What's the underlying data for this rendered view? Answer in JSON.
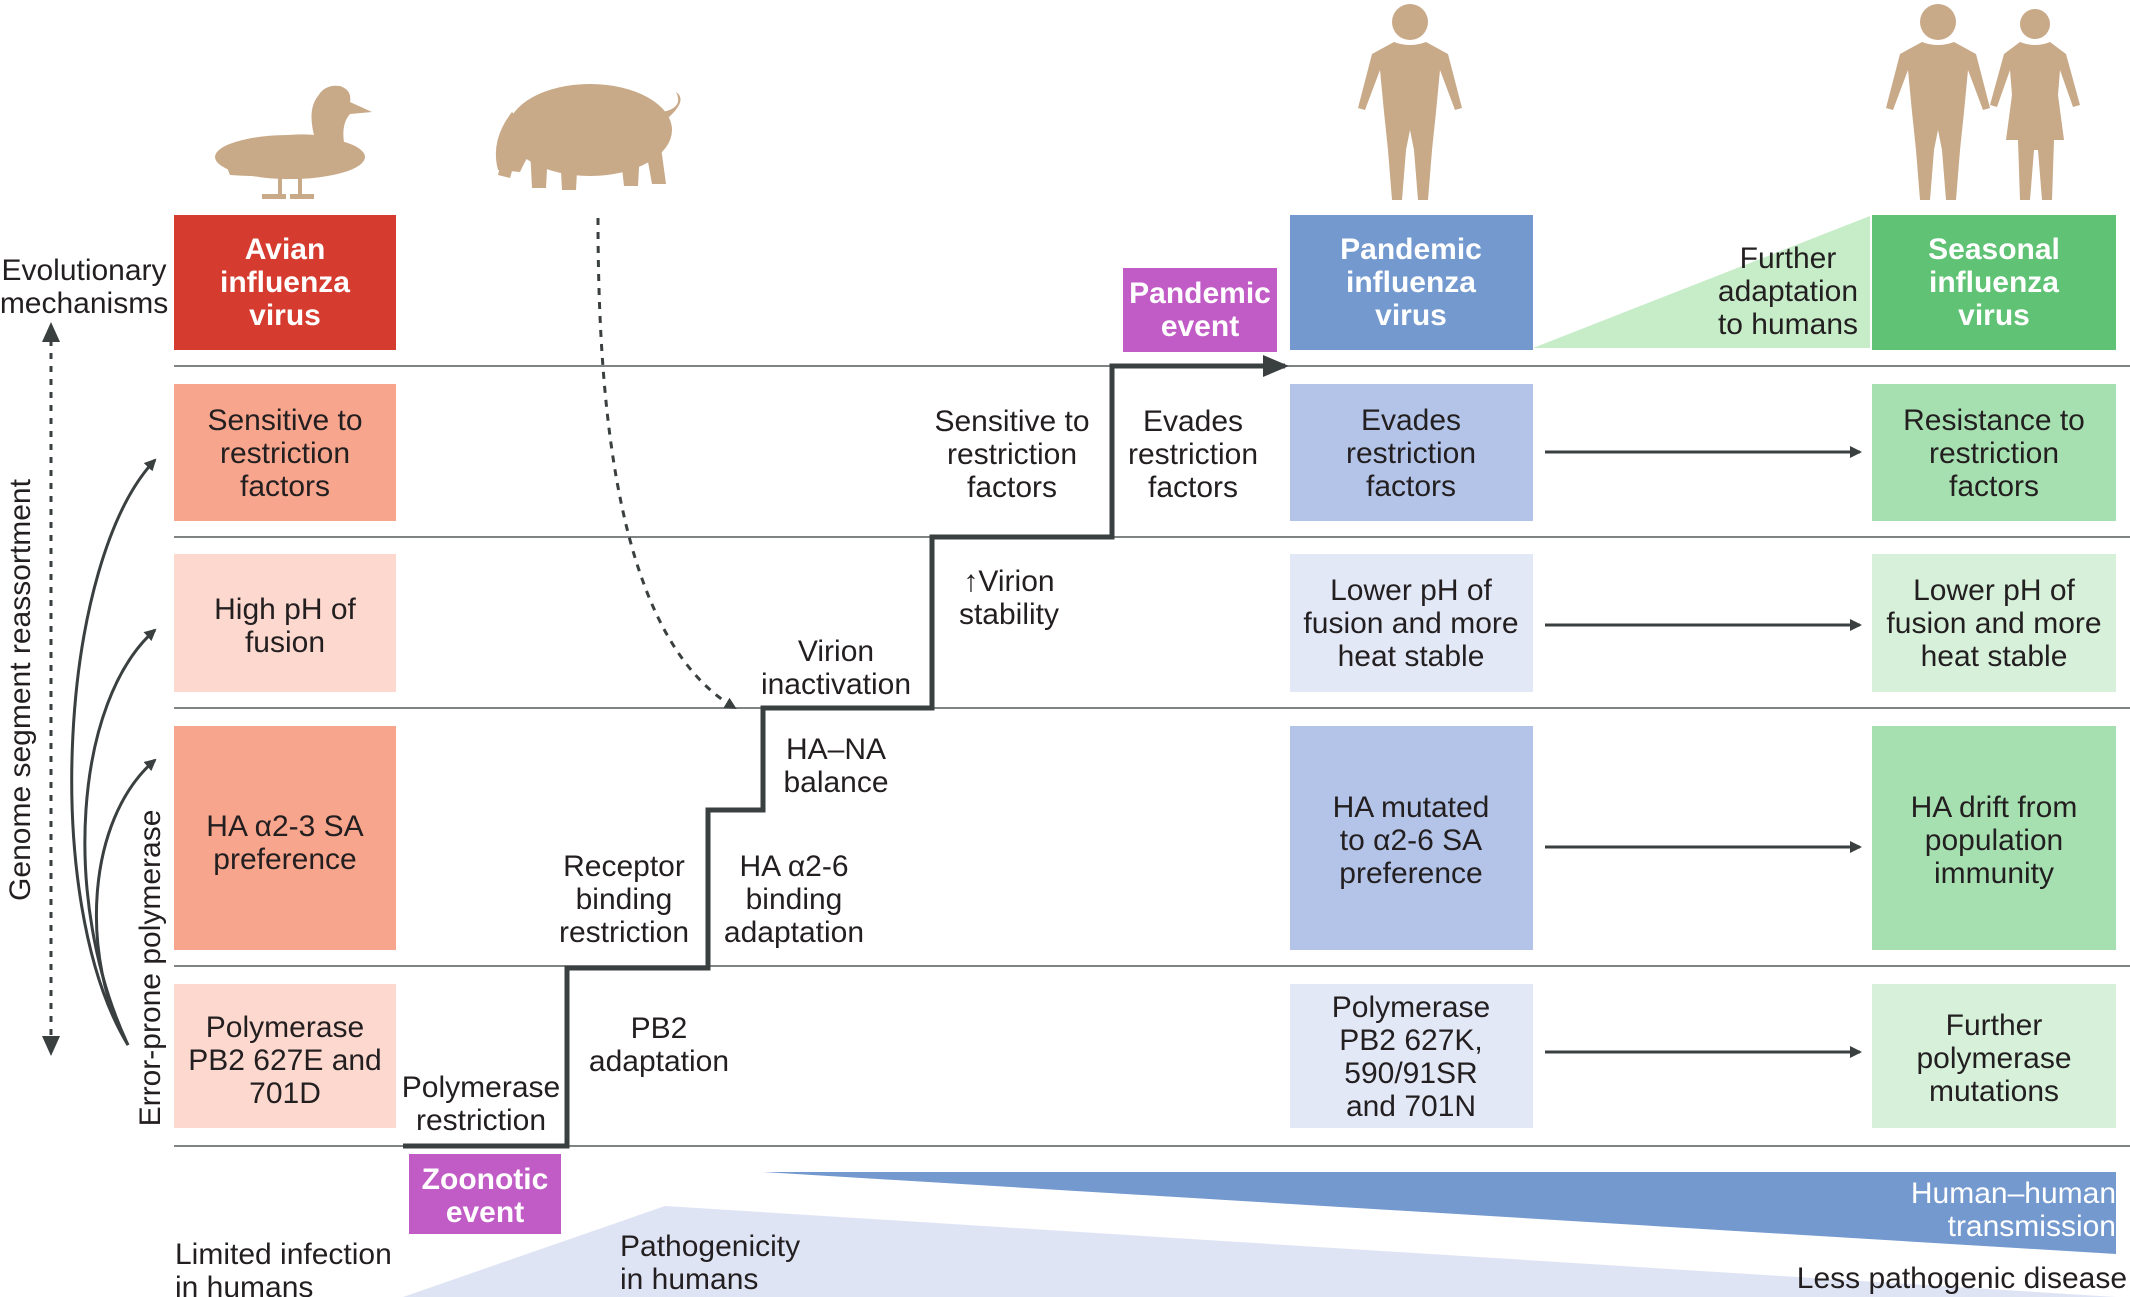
{
  "colors": {
    "avian_header": "#d63b2f",
    "avian_dark": "#f7a58d",
    "avian_light": "#fcd8cf",
    "pandemic_header": "#7399cf",
    "pandemic_mid": "#b3c4e8",
    "pandemic_light": "#e3e8f6",
    "seasonal_header": "#5fc274",
    "seasonal_mid": "#a6e0b0",
    "seasonal_light": "#d6f0da",
    "event": "#c15bc6",
    "step_line": "#3a3f40",
    "host_silhouette": "#c8a988",
    "transmission_wedge": "#7399cf",
    "pathogenicity_wedge": "#dfe4f5",
    "adaptation_wedge": "#c6ecc8"
  },
  "icons": {
    "duck": "duck-icon",
    "pig": "pig-icon",
    "human": "human-icon",
    "human_pair": "human-pair-icon"
  },
  "left_axis": {
    "evolutionary_mechanisms": [
      "Evolutionary",
      "mechanisms"
    ],
    "reassortment": "Genome segment reassortment",
    "polymerase": "Error-prone polymerase"
  },
  "headers": {
    "avian": [
      "Avian",
      "influenza",
      "virus"
    ],
    "pandemic": [
      "Pandemic",
      "influenza",
      "virus"
    ],
    "seasonal": [
      "Seasonal",
      "influenza",
      "virus"
    ],
    "pandemic_event": [
      "Pandemic",
      "event"
    ],
    "further_adaptation": [
      "Further",
      "adaptation",
      "to humans"
    ]
  },
  "avian_boxes": {
    "restriction": [
      "Sensitive to",
      "restriction",
      "factors"
    ],
    "fusion": [
      "High pH of",
      "fusion"
    ],
    "receptor": [
      "HA α2-3 SA",
      "preference"
    ],
    "polymerase": [
      "Polymerase",
      "PB2 627E and",
      "701D"
    ]
  },
  "pandemic_boxes": {
    "restriction": [
      "Evades",
      "restriction",
      "factors"
    ],
    "fusion": [
      "Lower pH of",
      "fusion and more",
      "heat stable"
    ],
    "receptor": [
      "HA mutated",
      "to α2-6 SA",
      "preference"
    ],
    "polymerase": [
      "Polymerase",
      "PB2 627K,",
      "590/91SR",
      "and 701N"
    ]
  },
  "seasonal_boxes": {
    "restriction": [
      "Resistance to",
      "restriction",
      "factors"
    ],
    "fusion": [
      "Lower pH of",
      "fusion and more",
      "heat stable"
    ],
    "receptor": [
      "HA drift from",
      "population",
      "immunity"
    ],
    "polymerase": [
      "Further",
      "polymerase",
      "mutations"
    ]
  },
  "steps": {
    "polymerase_restriction": [
      "Polymerase",
      "restriction"
    ],
    "pb2_adaptation": [
      "PB2",
      "adaptation"
    ],
    "receptor_binding_restriction": [
      "Receptor",
      "binding",
      "restriction"
    ],
    "ha_binding_adaptation": [
      "HA α2-6",
      "binding",
      "adaptation"
    ],
    "ha_na_balance": [
      "HA–NA",
      "balance"
    ],
    "virion_inactivation": [
      "Virion",
      "inactivation"
    ],
    "virion_stability": [
      "↑Virion",
      "stability"
    ],
    "sensitive_restriction": [
      "Sensitive to",
      "restriction",
      "factors"
    ],
    "evades_restriction": [
      "Evades",
      "restriction",
      "factors"
    ]
  },
  "bottom": {
    "zoonotic_event": [
      "Zoonotic",
      "event"
    ],
    "limited_infection": [
      "Limited infection",
      "in humans"
    ],
    "pathogenicity": [
      "Pathogenicity",
      "in humans"
    ],
    "human_transmission": [
      "Human–human",
      "transmission"
    ],
    "less_pathogenic": "Less pathogenic disease"
  }
}
